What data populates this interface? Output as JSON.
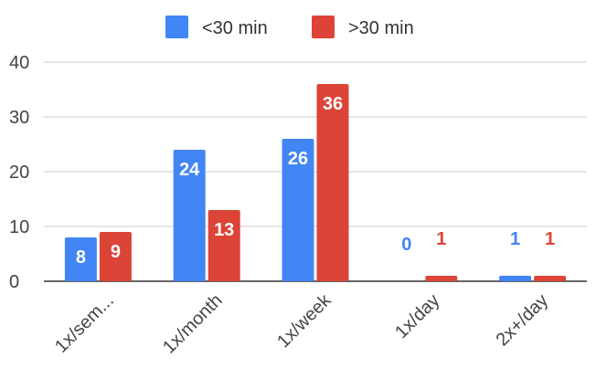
{
  "chart_data": {
    "type": "bar",
    "categories": [
      "1x/sem...",
      "1x/month",
      "1x/week",
      "1x/day",
      "2x+/day"
    ],
    "series": [
      {
        "name": "<30 min",
        "color": "#4285f4",
        "values": [
          8,
          24,
          26,
          0,
          1
        ]
      },
      {
        "name": ">30 min",
        "color": "#db4437",
        "values": [
          9,
          13,
          36,
          1,
          1
        ]
      }
    ],
    "yticks": [
      "0",
      "10",
      "20",
      "30",
      "40"
    ],
    "ylim": [
      0,
      40
    ],
    "grid": true,
    "legend_position": "top-center",
    "title": "",
    "xlabel": "",
    "ylabel": ""
  }
}
